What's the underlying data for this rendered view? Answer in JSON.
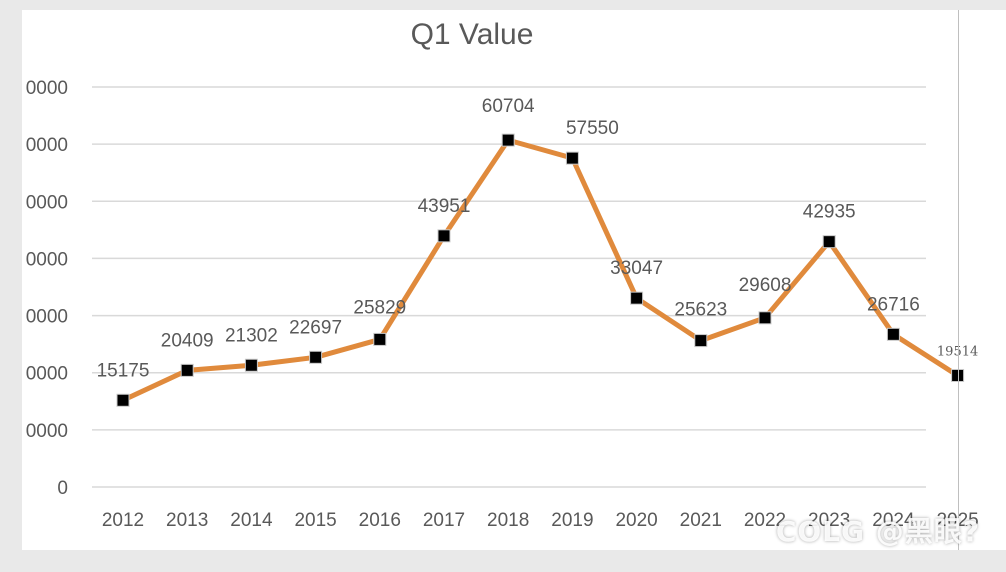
{
  "chart_data": {
    "type": "line",
    "title": "Q1 Value",
    "xlabel": "",
    "ylabel": "",
    "categories": [
      "2012",
      "2013",
      "2014",
      "2015",
      "2016",
      "2017",
      "2018",
      "2019",
      "2020",
      "2021",
      "2022",
      "2023",
      "2024",
      "2025"
    ],
    "series": [
      {
        "values": [
          15175,
          20409,
          21302,
          22697,
          25829,
          43951,
          60704,
          57550,
          33047,
          25623,
          29608,
          42935,
          26716,
          19514
        ],
        "data_labels": [
          "15175",
          "20409",
          "21302",
          "22697",
          "25829",
          "43951",
          "60704",
          "57550",
          "33047",
          "25623",
          "29608",
          "42935",
          "26716",
          "19514"
        ],
        "color": "#e08a3c",
        "marker_color": "#000000"
      }
    ],
    "y_tick_labels": [
      "0",
      "0000",
      "0000",
      "0000",
      "0000",
      "0000",
      "0000",
      "0000"
    ],
    "ylim": [
      0,
      70000
    ],
    "grid": true,
    "legend": "none"
  },
  "watermark": "COLG @黑眼?"
}
